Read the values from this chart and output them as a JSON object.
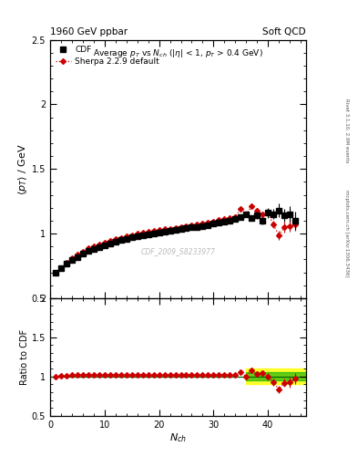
{
  "title_left": "1960 GeV ppbar",
  "title_right": "Soft QCD",
  "right_label_top": "Rivet 3.1.10, 2.9M events",
  "right_label_mid": "mcplots.cern.ch [arXiv:1306.3436]",
  "watermark": "CDF_2009_S8233977",
  "xlabel": "N_{ch}",
  "ylabel_main": "<p_T> / GeV",
  "ylabel_ratio": "Ratio to CDF",
  "ylim_main": [
    0.5,
    2.5
  ],
  "ylim_ratio": [
    0.5,
    2.0
  ],
  "xlim": [
    0,
    47
  ],
  "legend_cdf": "CDF",
  "legend_sherpa": "Sherpa 2.2.9 default",
  "cdf_x": [
    1,
    2,
    3,
    4,
    5,
    6,
    7,
    8,
    9,
    10,
    11,
    12,
    13,
    14,
    15,
    16,
    17,
    18,
    19,
    20,
    21,
    22,
    23,
    24,
    25,
    26,
    27,
    28,
    29,
    30,
    31,
    32,
    33,
    34,
    35,
    36,
    37,
    38,
    39,
    40,
    41,
    42,
    43,
    44,
    45
  ],
  "cdf_y": [
    0.695,
    0.73,
    0.765,
    0.795,
    0.82,
    0.845,
    0.865,
    0.88,
    0.895,
    0.91,
    0.925,
    0.938,
    0.95,
    0.96,
    0.97,
    0.978,
    0.986,
    0.993,
    1.0,
    1.007,
    1.014,
    1.02,
    1.027,
    1.033,
    1.04,
    1.047,
    1.053,
    1.06,
    1.067,
    1.075,
    1.082,
    1.09,
    1.1,
    1.11,
    1.13,
    1.15,
    1.12,
    1.14,
    1.1,
    1.16,
    1.15,
    1.18,
    1.14,
    1.15,
    1.1
  ],
  "cdf_yerr": [
    0.01,
    0.01,
    0.01,
    0.01,
    0.01,
    0.01,
    0.01,
    0.01,
    0.01,
    0.01,
    0.01,
    0.01,
    0.01,
    0.01,
    0.01,
    0.01,
    0.01,
    0.01,
    0.01,
    0.01,
    0.01,
    0.01,
    0.01,
    0.01,
    0.01,
    0.01,
    0.01,
    0.01,
    0.01,
    0.01,
    0.01,
    0.01,
    0.01,
    0.01,
    0.02,
    0.02,
    0.02,
    0.03,
    0.03,
    0.04,
    0.04,
    0.05,
    0.05,
    0.06,
    0.07
  ],
  "sherpa_x": [
    1,
    2,
    3,
    4,
    5,
    6,
    7,
    8,
    9,
    10,
    11,
    12,
    13,
    14,
    15,
    16,
    17,
    18,
    19,
    20,
    21,
    22,
    23,
    24,
    25,
    26,
    27,
    28,
    29,
    30,
    31,
    32,
    33,
    34,
    35,
    36,
    37,
    38,
    39,
    40,
    41,
    42,
    43,
    44,
    45
  ],
  "sherpa_y": [
    0.695,
    0.735,
    0.773,
    0.807,
    0.835,
    0.862,
    0.884,
    0.902,
    0.918,
    0.932,
    0.946,
    0.958,
    0.968,
    0.978,
    0.988,
    0.997,
    1.005,
    1.012,
    1.019,
    1.026,
    1.033,
    1.039,
    1.046,
    1.053,
    1.06,
    1.067,
    1.074,
    1.08,
    1.088,
    1.095,
    1.103,
    1.112,
    1.12,
    1.13,
    1.19,
    1.15,
    1.21,
    1.18,
    1.15,
    1.16,
    1.07,
    0.985,
    1.05,
    1.06,
    1.07
  ],
  "sherpa_yerr": [
    0.005,
    0.005,
    0.005,
    0.005,
    0.005,
    0.005,
    0.005,
    0.005,
    0.005,
    0.005,
    0.005,
    0.005,
    0.005,
    0.005,
    0.005,
    0.005,
    0.005,
    0.005,
    0.005,
    0.005,
    0.005,
    0.005,
    0.005,
    0.005,
    0.005,
    0.005,
    0.005,
    0.005,
    0.005,
    0.005,
    0.005,
    0.005,
    0.008,
    0.01,
    0.012,
    0.015,
    0.015,
    0.018,
    0.02,
    0.025,
    0.03,
    0.035,
    0.04,
    0.045,
    0.05
  ],
  "ratio_sherpa_y": [
    1.0,
    1.007,
    1.01,
    1.015,
    1.018,
    1.02,
    1.022,
    1.025,
    1.026,
    1.024,
    1.022,
    1.021,
    1.019,
    1.019,
    1.018,
    1.019,
    1.019,
    1.019,
    1.019,
    1.019,
    1.019,
    1.019,
    1.019,
    1.02,
    1.019,
    1.019,
    1.02,
    1.019,
    1.02,
    1.019,
    1.02,
    1.019,
    1.018,
    1.018,
    1.053,
    1.0,
    1.08,
    1.035,
    1.045,
    1.0,
    0.93,
    0.835,
    0.92,
    0.922,
    0.973
  ],
  "ratio_yerr": [
    0.01,
    0.01,
    0.01,
    0.01,
    0.01,
    0.01,
    0.01,
    0.01,
    0.01,
    0.01,
    0.01,
    0.01,
    0.01,
    0.01,
    0.01,
    0.01,
    0.01,
    0.01,
    0.01,
    0.01,
    0.01,
    0.01,
    0.01,
    0.01,
    0.01,
    0.01,
    0.01,
    0.01,
    0.01,
    0.01,
    0.01,
    0.01,
    0.012,
    0.015,
    0.018,
    0.02,
    0.025,
    0.03,
    0.035,
    0.04,
    0.045,
    0.05,
    0.055,
    0.06,
    0.07
  ],
  "band_x_start": 36,
  "band_x_end": 47,
  "green_band_inner": 0.05,
  "yellow_band_outer": 0.1,
  "cdf_color": "#000000",
  "sherpa_color": "#cc0000",
  "ratio_line_color": "#006600",
  "bg_color": "#ffffff"
}
